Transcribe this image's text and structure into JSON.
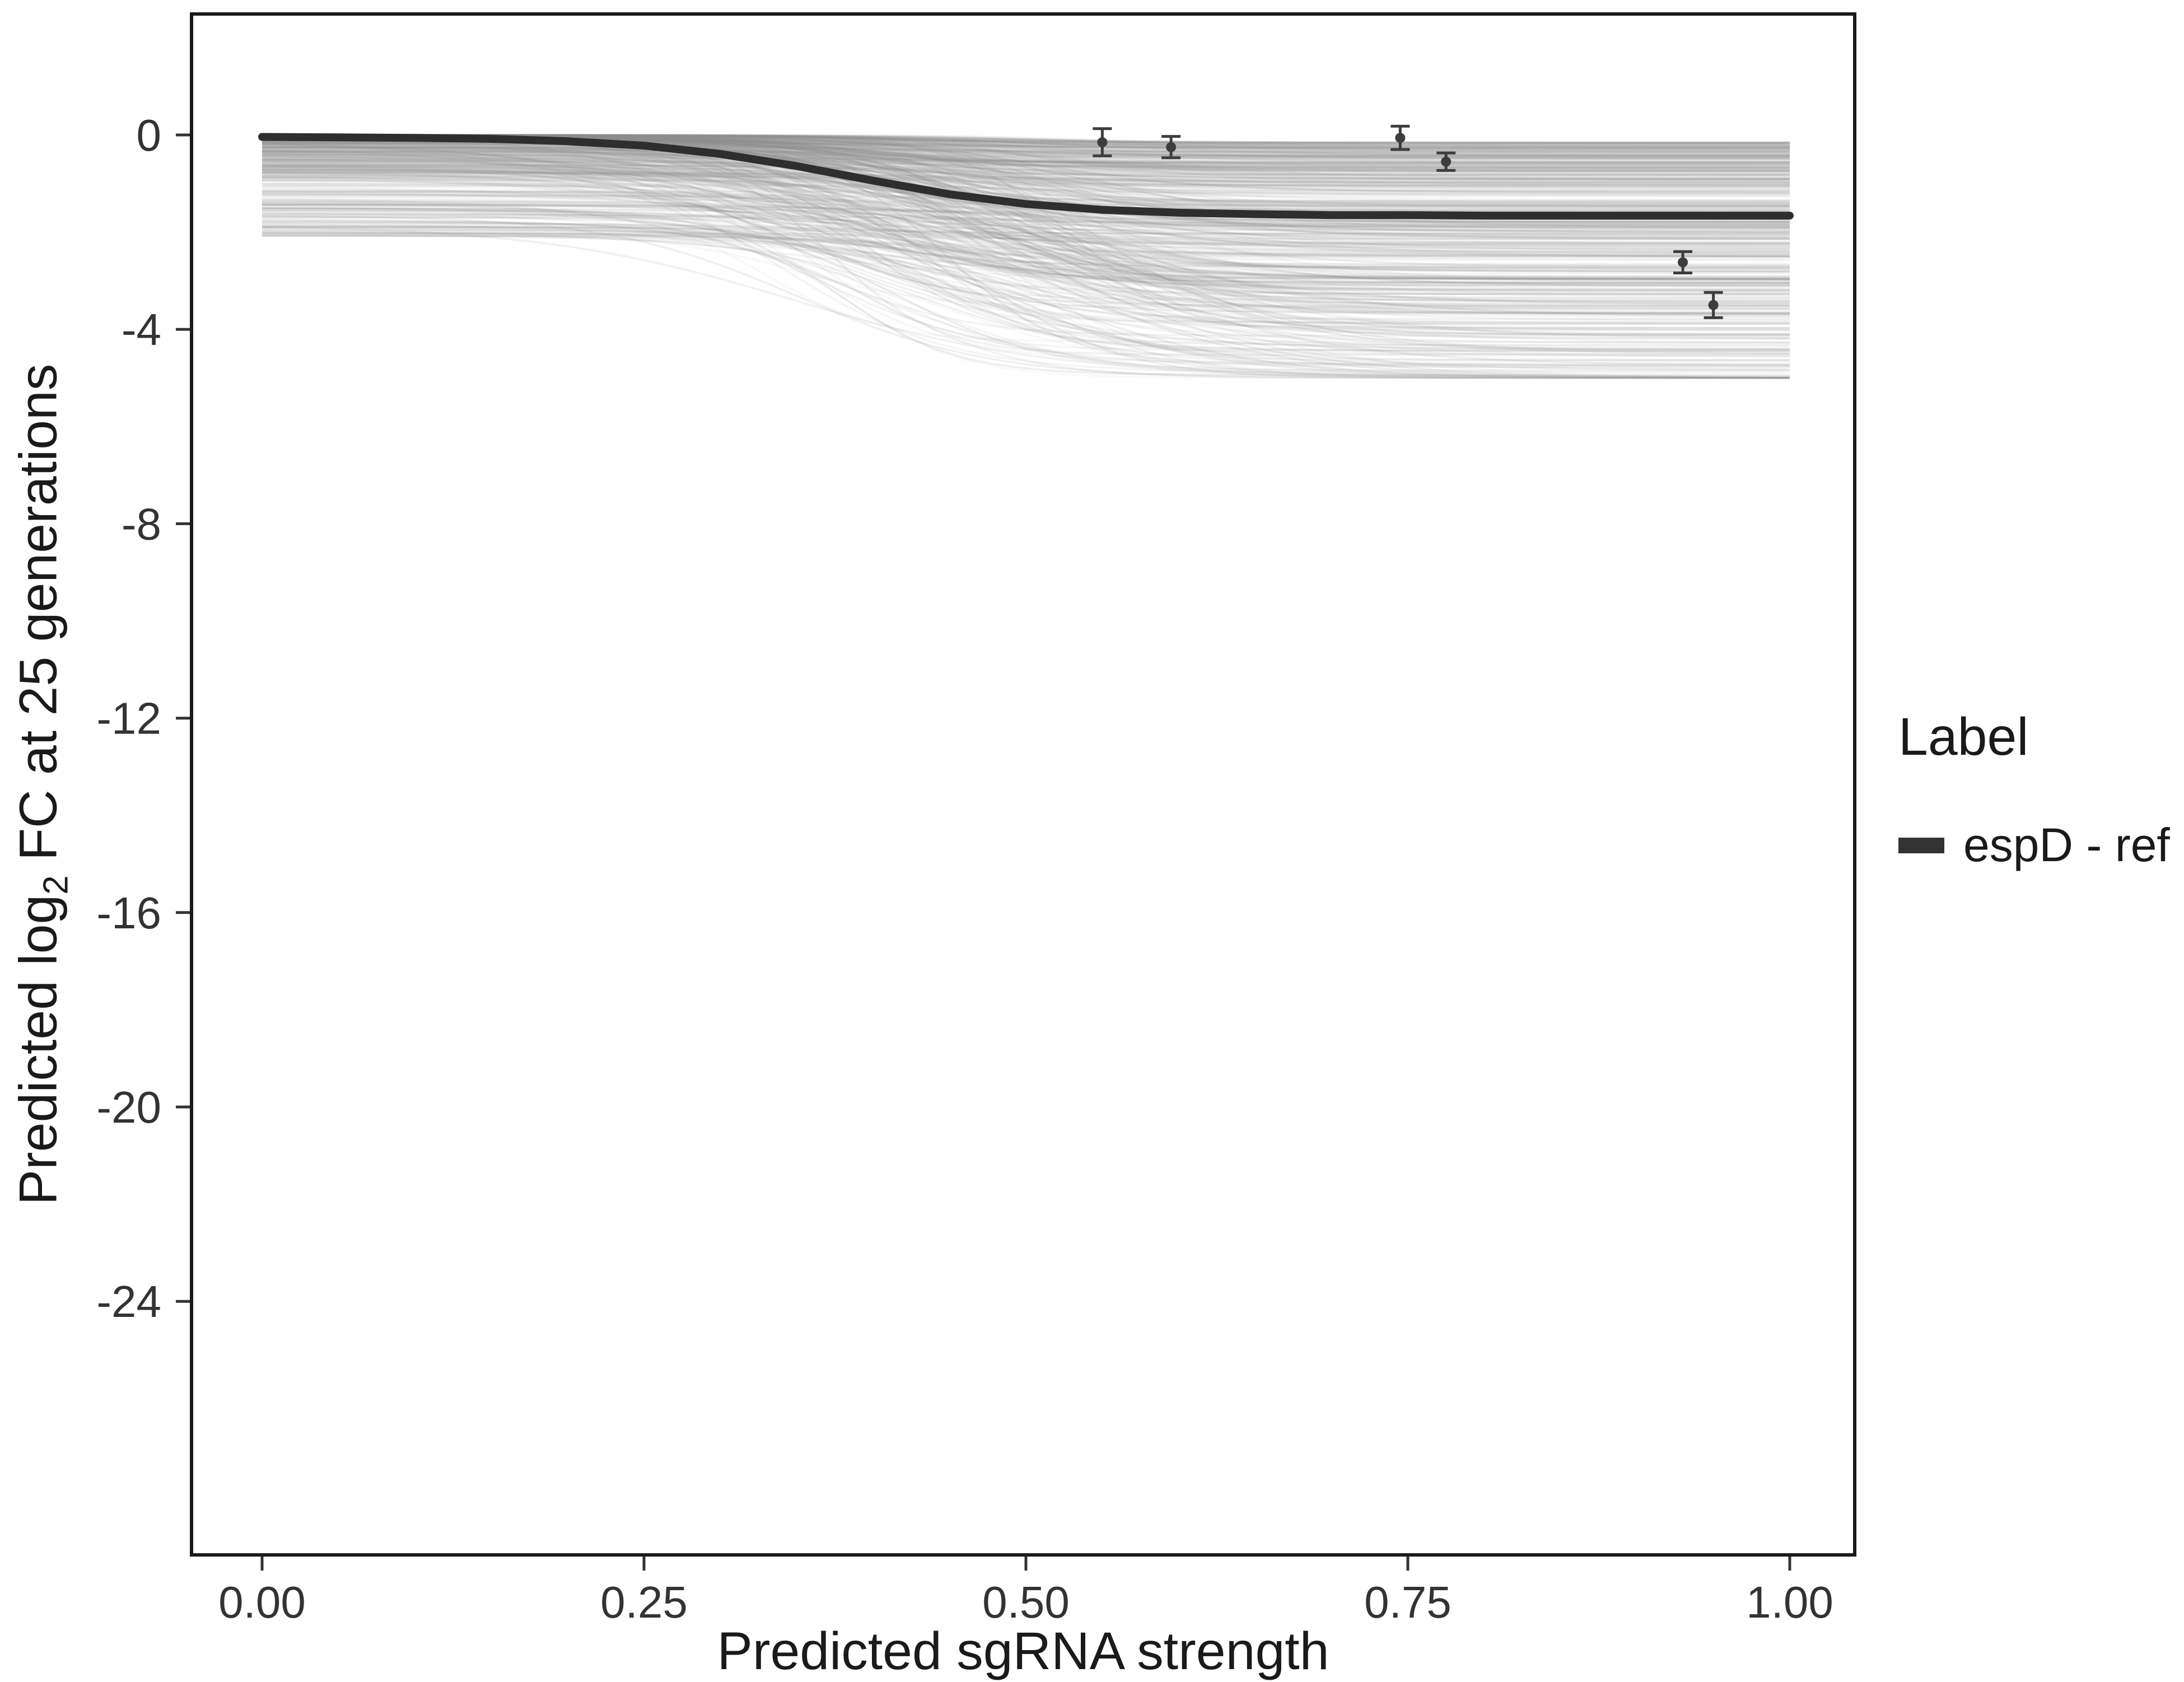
{
  "chart_data": {
    "type": "line",
    "title": "",
    "xlabel": "Predicted sgRNA strength",
    "ylabel": "Predicted log2 FC at 25 generations",
    "ylabel_parts": {
      "prefix": "Predicted  log",
      "sub": "2",
      "suffix": " FC at 25 generations"
    },
    "xlim": [
      0,
      1
    ],
    "ylim": [
      -29.2,
      2.5
    ],
    "grid": "off",
    "legend_position": "right",
    "x_ticks": {
      "values": [
        0,
        0.25,
        0.5,
        0.75,
        1.0
      ],
      "labels": [
        "0.00",
        "0.25",
        "0.50",
        "0.75",
        "1.00"
      ]
    },
    "y_ticks": {
      "values": [
        0,
        -4,
        -8,
        -12,
        -16,
        -20,
        -24
      ],
      "labels": [
        "0",
        "-4",
        "-8",
        "-12",
        "-16",
        "-20",
        "-24"
      ]
    },
    "legend": {
      "title": "Label",
      "items": [
        {
          "label": "espD - ref",
          "color": "#333333",
          "type": "line"
        }
      ]
    },
    "ref_line": {
      "name": "espD - ref",
      "x": [
        0,
        0.05,
        0.1,
        0.15,
        0.2,
        0.25,
        0.3,
        0.35,
        0.4,
        0.45,
        0.5,
        0.55,
        0.6,
        0.65,
        0.7,
        0.75,
        0.8,
        0.85,
        0.9,
        0.95,
        1.0
      ],
      "y": [
        -0.04,
        -0.05,
        -0.06,
        -0.08,
        -0.13,
        -0.22,
        -0.39,
        -0.64,
        -0.94,
        -1.22,
        -1.42,
        -1.54,
        -1.6,
        -1.63,
        -1.65,
        -1.65,
        -1.66,
        -1.66,
        -1.66,
        -1.66,
        -1.66
      ]
    },
    "points": [
      {
        "x": 0.55,
        "y": -0.15,
        "err": 0.28
      },
      {
        "x": 0.595,
        "y": -0.25,
        "err": 0.22
      },
      {
        "x": 0.745,
        "y": -0.06,
        "err": 0.24
      },
      {
        "x": 0.775,
        "y": -0.55,
        "err": 0.18
      },
      {
        "x": 0.93,
        "y": -2.62,
        "err": 0.22
      },
      {
        "x": 0.95,
        "y": -3.5,
        "err": 0.26
      }
    ],
    "ensemble": {
      "description": "many semi-transparent gray sigmoid curves forming a band from 0 down to about -5 at x=1",
      "count": 500,
      "seed": 42,
      "y_start_range": [
        0,
        -2.2
      ],
      "y_end_range": [
        -0.3,
        -5.0
      ]
    },
    "colors": {
      "ref_line": "#2e2e2e",
      "ensemble": "#909090",
      "points": "#3d3d3d",
      "axis_text": "#333333",
      "panel_border": "#1a1a1a"
    }
  }
}
